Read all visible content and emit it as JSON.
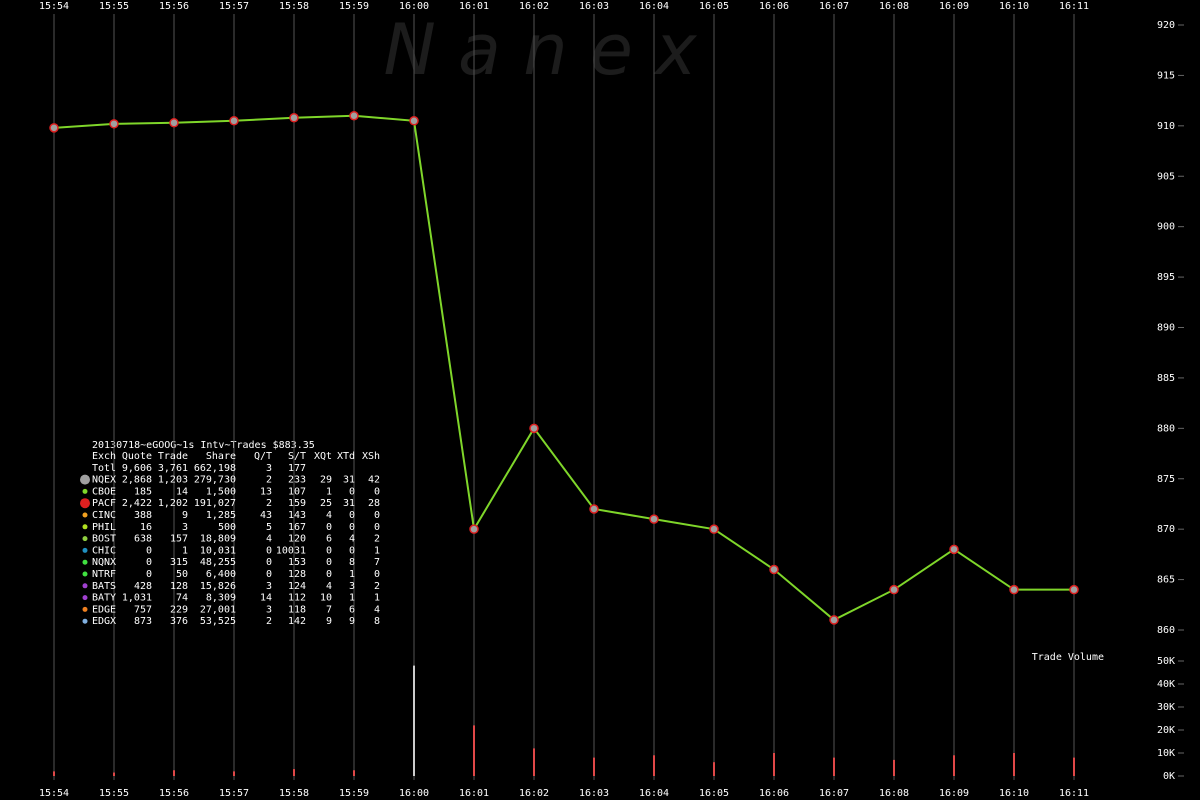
{
  "chart_data": {
    "type": "line",
    "watermark": "N a n e x",
    "categories": [
      "15:54",
      "15:55",
      "15:56",
      "15:57",
      "15:58",
      "15:59",
      "16:00",
      "16:01",
      "16:02",
      "16:03",
      "16:04",
      "16:05",
      "16:06",
      "16:07",
      "16:08",
      "16:09",
      "16:10",
      "16:11"
    ],
    "series": [
      {
        "color": "#7fd62a",
        "values": [
          909.8,
          910.2,
          910.3,
          910.5,
          910.8,
          911,
          910.5,
          870,
          880,
          872,
          871,
          870,
          866,
          861,
          864,
          868,
          864,
          864
        ]
      }
    ],
    "ylim": [
      860,
      920
    ],
    "yticks": [
      860,
      865,
      870,
      875,
      880,
      885,
      890,
      895,
      900,
      905,
      910,
      915,
      920
    ],
    "grid": true,
    "volume": {
      "label": "Trade Volume",
      "color": "#e04848",
      "values": [
        2000,
        1500,
        2500,
        2000,
        3000,
        2500,
        48000,
        22000,
        12000,
        8000,
        9000,
        6000,
        10000,
        8000,
        7000,
        9000,
        10000,
        8000
      ],
      "ylim": [
        0,
        50000
      ],
      "yticks": [
        {
          "value": 0,
          "label": "0K"
        },
        {
          "value": 10000,
          "label": "10K"
        },
        {
          "value": 20000,
          "label": "20K"
        },
        {
          "value": 30000,
          "label": "30K"
        },
        {
          "value": 40000,
          "label": "40K"
        },
        {
          "value": 50000,
          "label": "50K"
        }
      ]
    }
  },
  "table": {
    "title": "20130718~eGOOG~1s Intv~Trades $883.35",
    "columns": [
      "Exch",
      "Quote",
      "Trade",
      "Share",
      "Q/T",
      "S/T",
      "XQt",
      "XTd",
      "XSh"
    ],
    "rows": [
      {
        "cells": [
          "Totl",
          "9,606",
          "3,761",
          "662,198",
          "3",
          "177",
          "",
          "",
          ""
        ]
      },
      {
        "cells": [
          "NQEX",
          "2,868",
          "1,203",
          "279,730",
          "2",
          "233",
          "29",
          "31",
          "42"
        ],
        "color": "#a0a0a0"
      },
      {
        "cells": [
          "CBOE",
          "185",
          "14",
          "1,500",
          "13",
          "107",
          "1",
          "0",
          "0"
        ],
        "color": "#7fd62a"
      },
      {
        "cells": [
          "PACF",
          "2,422",
          "1,202",
          "191,027",
          "2",
          "159",
          "25",
          "31",
          "28"
        ],
        "color": "#e02020"
      },
      {
        "cells": [
          "CINC",
          "388",
          "9",
          "1,285",
          "43",
          "143",
          "4",
          "0",
          "0"
        ],
        "color": "#f0a020"
      },
      {
        "cells": [
          "PHIL",
          "16",
          "3",
          "500",
          "5",
          "167",
          "0",
          "0",
          "0"
        ],
        "color": "#b0e020"
      },
      {
        "cells": [
          "BOST",
          "638",
          "157",
          "18,809",
          "4",
          "120",
          "6",
          "4",
          "2"
        ],
        "color": "#90d040"
      },
      {
        "cells": [
          "CHIC",
          "0",
          "1",
          "10,031",
          "0",
          "10031",
          "0",
          "0",
          "1"
        ],
        "color": "#2090c0"
      },
      {
        "cells": [
          "NQNX",
          "0",
          "315",
          "48,255",
          "0",
          "153",
          "0",
          "8",
          "7"
        ],
        "color": "#40e040"
      },
      {
        "cells": [
          "NTRF",
          "0",
          "50",
          "6,400",
          "0",
          "128",
          "0",
          "1",
          "0"
        ],
        "color": "#40e040"
      },
      {
        "cells": [
          "BATS",
          "428",
          "128",
          "15,826",
          "3",
          "124",
          "4",
          "3",
          "2"
        ],
        "color": "#a040d0"
      },
      {
        "cells": [
          "BATY",
          "1,031",
          "74",
          "8,309",
          "14",
          "112",
          "10",
          "1",
          "1"
        ],
        "color": "#a040d0"
      },
      {
        "cells": [
          "EDGE",
          "757",
          "229",
          "27,001",
          "3",
          "118",
          "7",
          "6",
          "4"
        ],
        "color": "#f08020"
      },
      {
        "cells": [
          "EDGX",
          "873",
          "376",
          "53,525",
          "2",
          "142",
          "9",
          "9",
          "8"
        ],
        "color": "#80b0e0"
      }
    ]
  }
}
